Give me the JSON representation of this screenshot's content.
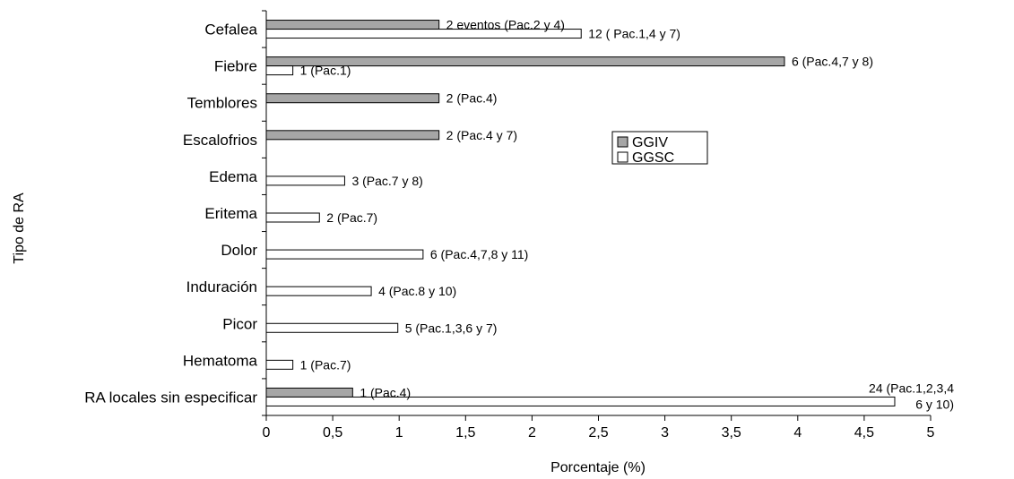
{
  "chart_data": {
    "type": "bar",
    "orientation": "horizontal",
    "xlabel": "Porcentaje (%)",
    "ylabel": "Tipo de RA",
    "xlim": [
      0,
      5
    ],
    "x_ticks": [
      "0",
      "0,5",
      "1",
      "1,5",
      "2",
      "2,5",
      "3",
      "3,5",
      "4",
      "4,5",
      "5"
    ],
    "legend_position": "right",
    "grid": false,
    "categories": [
      "Cefalea",
      "Fiebre",
      "Temblores",
      "Escalofrios",
      "Edema",
      "Eritema",
      "Dolor",
      "Induración",
      "Picor",
      "Hematoma",
      "RA locales sin especificar"
    ],
    "series": [
      {
        "name": "GGIV",
        "color": "#a6a6a6",
        "values": [
          1.3,
          3.9,
          1.3,
          1.3,
          null,
          null,
          null,
          null,
          null,
          null,
          0.65
        ],
        "labels": [
          "2 eventos (Pac.2 y 4)",
          "6 (Pac.4,7 y 8)",
          "2 (Pac.4)",
          "2 (Pac.4 y 7)",
          "",
          "",
          "",
          "",
          "",
          "",
          "1 (Pac.4)"
        ]
      },
      {
        "name": "GGSC",
        "color": "#ffffff",
        "values": [
          2.37,
          0.2,
          null,
          null,
          0.59,
          0.4,
          1.18,
          0.79,
          0.99,
          0.2,
          4.73
        ],
        "labels": [
          "12 ( Pac.1,4 y 7)",
          "1 (Pac.1)",
          "",
          "",
          "3 (Pac.7 y 8)",
          "2 (Pac.7)",
          "6 (Pac.4,7,8 y 11)",
          "4 (Pac.8 y 10)",
          "5 (Pac.1,3,6 y 7)",
          "1 (Pac.7)",
          "24 (Pac.1,2,3,4\n6 y 10)"
        ]
      }
    ]
  }
}
